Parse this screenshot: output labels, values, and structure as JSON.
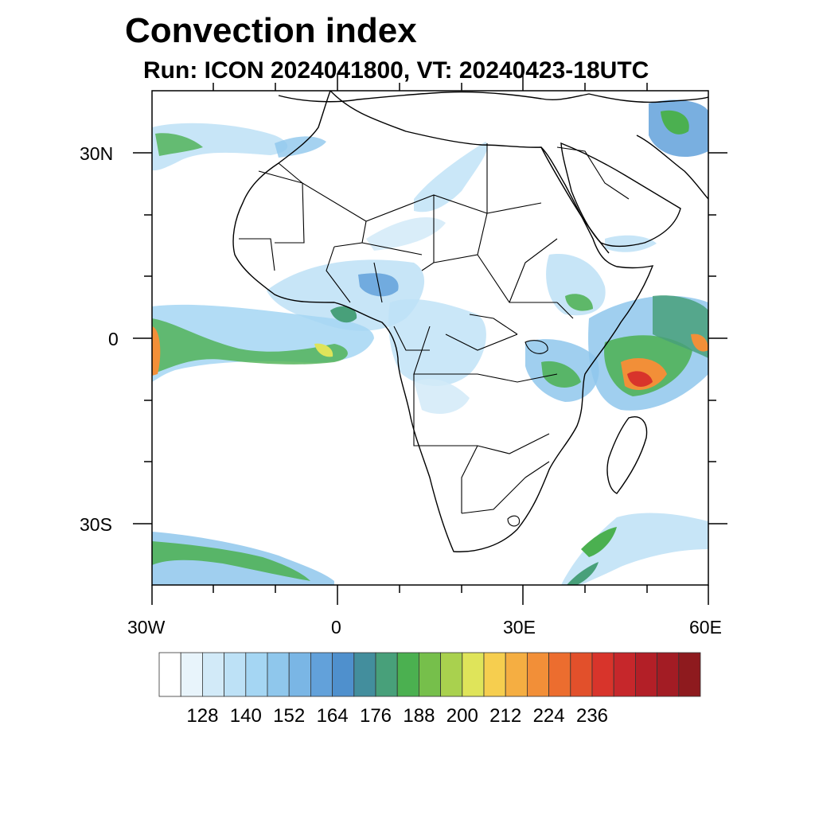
{
  "title": "Convection index",
  "subtitle": "Run: ICON 2024041800,  VT: 20240423-18UTC",
  "map": {
    "lon_range": [
      -30,
      60
    ],
    "lat_range": [
      -40,
      40
    ],
    "lat_labels": [
      "30N",
      "0",
      "30S"
    ],
    "lon_labels": [
      "30W",
      "0",
      "30E",
      "60E"
    ]
  },
  "colorbar": {
    "colors": [
      "#ffffff",
      "#e8f4fb",
      "#d2eaf8",
      "#bde1f6",
      "#a5d6f3",
      "#8fc7ec",
      "#7ab6e5",
      "#62a1da",
      "#4f90cd",
      "#438e9d",
      "#48a07a",
      "#4bb050",
      "#76bf4b",
      "#a9d14e",
      "#dfe45a",
      "#f6ce4f",
      "#f5ae42",
      "#f28f38",
      "#ec6d2f",
      "#e2502b",
      "#d8342b",
      "#c6272b",
      "#b31f27",
      "#a31c24",
      "#8e1a1e"
    ],
    "labels": [
      "128",
      "140",
      "152",
      "164",
      "176",
      "188",
      "200",
      "212",
      "224",
      "236"
    ]
  },
  "legend_colors": {
    "light": "#bde1f6",
    "blue": "#62a1da",
    "green": "#4bb050",
    "yellow": "#dfe45a",
    "orange": "#f28f38",
    "red": "#d8342b"
  }
}
